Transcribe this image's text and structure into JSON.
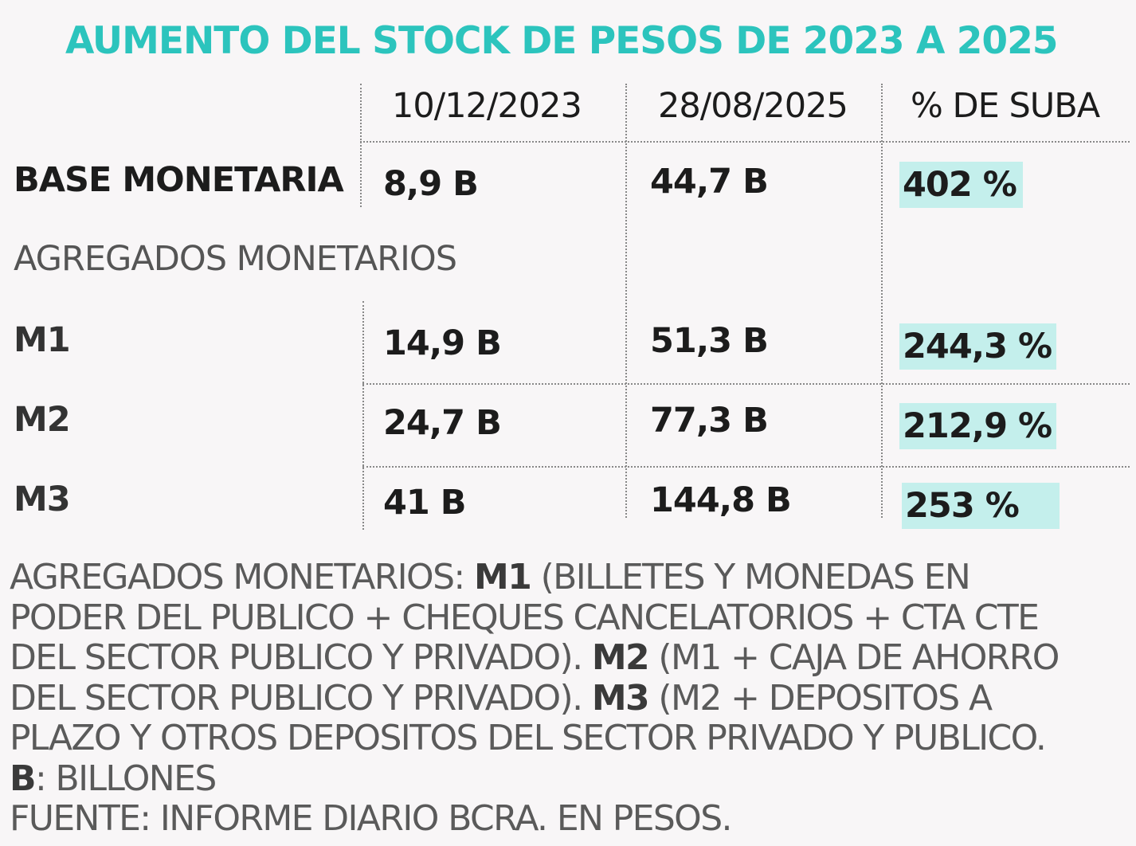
{
  "title": "AUMENTO DEL STOCK DE PESOS DE 2023 A 2025",
  "columns": [
    "10/12/2023",
    "28/08/2025",
    "% DE SUBA"
  ],
  "section_label": "AGREGADOS  MONETARIOS",
  "rows": [
    {
      "label": "BASE MONETARIA",
      "v2023": "8,9 B",
      "v2025": "44,7 B",
      "pct": "402 %"
    },
    {
      "label": "M1",
      "v2023": "14,9 B",
      "v2025": "51,3 B",
      "pct": "244,3 %"
    },
    {
      "label": "M2",
      "v2023": "24,7 B",
      "v2025": "77,3 B",
      "pct": "212,9 %"
    },
    {
      "label": "M3",
      "v2023": "41 B",
      "v2025": "144,8 B",
      "pct": "253 %"
    }
  ],
  "notes": {
    "l1_a": "AGREGADOS MONETARIOS: ",
    "m1_bold": "M1",
    "l1_b": " (BILLETES Y MONEDAS EN",
    "l2": "PODER DEL PUBLICO + CHEQUES CANCELATORIOS + CTA CTE",
    "l3_a": "DEL SECTOR PUBLICO Y PRIVADO). ",
    "m2_bold": "M2",
    "l3_b": " (M1 + CAJA DE AHORRO",
    "l4_a": "DEL SECTOR PUBLICO Y PRIVADO). ",
    "m3_bold": "M3",
    "l4_b": " (M2 + DEPOSITOS A",
    "l5": "PLAZO Y OTROS DEPOSITOS DEL SECTOR PRIVADO Y PUBLICO.",
    "b_bold": "B",
    "l6_b": ": BILLONES",
    "source": "FUENTE: INFORME DIARIO BCRA. EN PESOS."
  },
  "colors": {
    "title": "#2cc4bd",
    "highlight": "#c4efec"
  },
  "chart_data": {
    "type": "table",
    "title": "AUMENTO DEL STOCK DE PESOS DE 2023 A 2025",
    "columns": [
      "10/12/2023",
      "28/08/2025",
      "% DE SUBA"
    ],
    "rows": [
      {
        "name": "BASE MONETARIA",
        "values": [
          8.9,
          44.7,
          402
        ]
      },
      {
        "name": "M1",
        "values": [
          14.9,
          51.3,
          244.3
        ]
      },
      {
        "name": "M2",
        "values": [
          24.7,
          77.3,
          212.9
        ]
      },
      {
        "name": "M3",
        "values": [
          41,
          144.8,
          253
        ]
      }
    ],
    "unit": "B (billones de pesos)"
  }
}
